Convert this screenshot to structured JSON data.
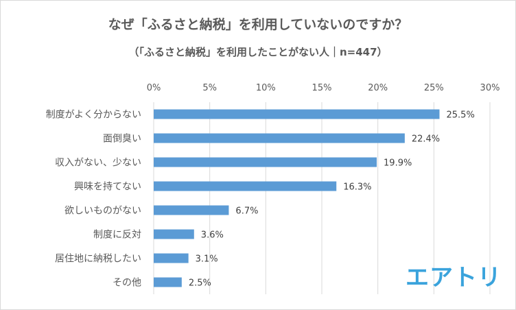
{
  "chart_data": {
    "type": "bar",
    "orientation": "horizontal",
    "title": "なぜ「ふるさと納税」を利用していないのですか？",
    "subtitle": "（「ふるさと納税」を利用したことがない人｜n=447）",
    "categories": [
      "制度がよく分からない",
      "面倒臭い",
      "収入がない、少ない",
      "興味を持てない",
      "欲しいものがない",
      "制度に反対",
      "居住地に納税したい",
      "その他"
    ],
    "values": [
      25.5,
      22.4,
      19.9,
      16.3,
      6.7,
      3.6,
      3.1,
      2.5
    ],
    "data_labels": [
      "25.5%",
      "22.4%",
      "19.9%",
      "16.3%",
      "6.7%",
      "3.6%",
      "3.1%",
      "2.5%"
    ],
    "x_ticks": [
      0,
      5,
      10,
      15,
      20,
      25,
      30
    ],
    "x_tick_labels": [
      "0%",
      "5%",
      "10%",
      "15%",
      "20%",
      "25%",
      "30%"
    ],
    "xlim": [
      0,
      30
    ],
    "xlabel": "",
    "ylabel": "",
    "axis_position": "top",
    "grid": "vertical",
    "bar_color": "#5b9bd5",
    "grid_color": "#d9d9d9"
  },
  "logo": {
    "text": "エアトリ",
    "color": "#3aa3dc"
  }
}
